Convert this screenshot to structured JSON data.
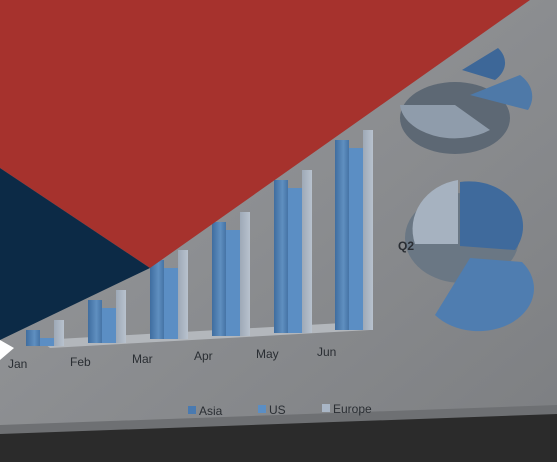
{
  "chart_data": [
    {
      "type": "bar",
      "categories": [
        "Jan",
        "Feb",
        "Mar",
        "Apr",
        "May",
        "Jun"
      ],
      "series": [
        {
          "name": "Asia",
          "color": "#4a7ab0"
        },
        {
          "name": "US",
          "color": "#5b8ec4"
        },
        {
          "name": "Europe",
          "color": "#a9b6c6"
        }
      ],
      "legend": "bottom"
    },
    {
      "type": "pie",
      "labels": [
        "Q2"
      ]
    }
  ],
  "colors": {
    "banner_red": "#a6322d",
    "banner_navy": "#0c2a46",
    "screen_gray": "#8a8c8f",
    "bezel": "#2b2b2b"
  }
}
